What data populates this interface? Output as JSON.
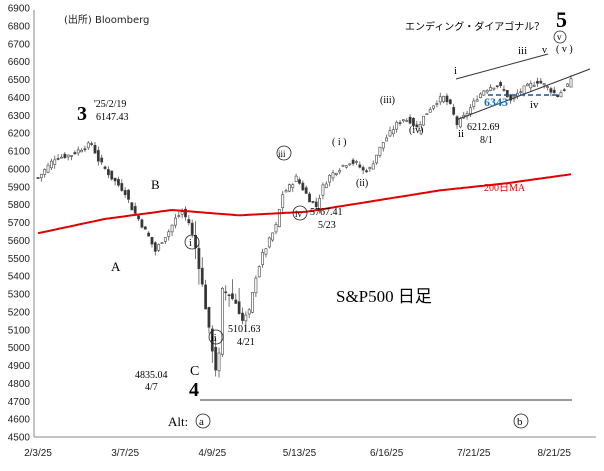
{
  "chart_data": {
    "type": "candlestick",
    "title": "S&P500 日足",
    "source_note": "(出所) Bloomberg",
    "ylim": [
      4500,
      6900
    ],
    "y_ticks": [
      4500,
      4600,
      4700,
      4800,
      4900,
      5000,
      5100,
      5200,
      5300,
      5400,
      5500,
      5600,
      5700,
      5800,
      5900,
      6000,
      6100,
      6200,
      6300,
      6400,
      6500,
      6600,
      6700,
      6800,
      6900
    ],
    "x_ticks": [
      "2/3/25",
      "3/7/25",
      "4/9/25",
      "5/13/25",
      "6/16/25",
      "7/21/25",
      "8/21/25"
    ],
    "grid": false,
    "ma_label": "200日MA",
    "ma_color": "#e00000",
    "ohlc_day_approx_range": {
      "start": "2/3/25",
      "end": "8/29/25"
    },
    "price_path": [
      [
        0,
        5950
      ],
      [
        5,
        6060
      ],
      [
        10,
        6080
      ],
      [
        13,
        6115
      ],
      [
        16,
        6140
      ],
      [
        18,
        6050
      ],
      [
        22,
        5950
      ],
      [
        26,
        5870
      ],
      [
        28,
        5780
      ],
      [
        30,
        5720
      ],
      [
        33,
        5620
      ],
      [
        35,
        5540
      ],
      [
        37,
        5600
      ],
      [
        39,
        5650
      ],
      [
        41,
        5720
      ],
      [
        43,
        5760
      ],
      [
        45,
        5700
      ],
      [
        47,
        5560
      ],
      [
        49,
        5350
      ],
      [
        51,
        5100
      ],
      [
        52,
        4990
      ],
      [
        53,
        4880
      ],
      [
        54,
        4960
      ],
      [
        55,
        5320
      ],
      [
        57,
        5300
      ],
      [
        59,
        5250
      ],
      [
        61,
        5150
      ],
      [
        63,
        5200
      ],
      [
        65,
        5400
      ],
      [
        67,
        5520
      ],
      [
        69,
        5600
      ],
      [
        71,
        5680
      ],
      [
        73,
        5860
      ],
      [
        75,
        5900
      ],
      [
        77,
        5950
      ],
      [
        79,
        5890
      ],
      [
        81,
        5830
      ],
      [
        83,
        5790
      ],
      [
        85,
        5900
      ],
      [
        87,
        5960
      ],
      [
        89,
        5990
      ],
      [
        91,
        6020
      ],
      [
        93,
        6040
      ],
      [
        95,
        6030
      ],
      [
        97,
        5990
      ],
      [
        99,
        6000
      ],
      [
        101,
        6080
      ],
      [
        103,
        6150
      ],
      [
        105,
        6200
      ],
      [
        107,
        6250
      ],
      [
        109,
        6280
      ],
      [
        111,
        6270
      ],
      [
        113,
        6230
      ],
      [
        115,
        6290
      ],
      [
        117,
        6340
      ],
      [
        119,
        6380
      ],
      [
        121,
        6400
      ],
      [
        123,
        6350
      ],
      [
        125,
        6250
      ],
      [
        127,
        6290
      ],
      [
        129,
        6340
      ],
      [
        131,
        6400
      ],
      [
        133,
        6440
      ],
      [
        135,
        6460
      ],
      [
        137,
        6470
      ],
      [
        139,
        6440
      ],
      [
        141,
        6380
      ],
      [
        143,
        6420
      ],
      [
        145,
        6450
      ],
      [
        147,
        6470
      ],
      [
        149,
        6490
      ],
      [
        151,
        6470
      ],
      [
        153,
        6440
      ],
      [
        155,
        6410
      ],
      [
        157,
        6450
      ],
      [
        159,
        6490
      ]
    ],
    "ma_path": [
      [
        0,
        5640
      ],
      [
        20,
        5720
      ],
      [
        40,
        5770
      ],
      [
        60,
        5740
      ],
      [
        80,
        5760
      ],
      [
        100,
        5820
      ],
      [
        120,
        5880
      ],
      [
        140,
        5920
      ],
      [
        159,
        5970
      ]
    ],
    "labels": {
      "w3": "3",
      "w3_date": "'25/2/19",
      "w3_value": "6147.43",
      "wA": "A",
      "wB": "B",
      "wC": "C",
      "w4": "4",
      "w4_value": "4835.04",
      "w4_date": "4/7",
      "wi_low": "i",
      "wii_low": "ii",
      "wii_value": "5101.63",
      "wii_date": "4/21",
      "wiii_a": "iii",
      "wiv_a": "iv",
      "wiv_value": "5767.41",
      "wiv_date": "5/23",
      "w_i_paren": "( i )",
      "w_ii_paren": "(ii)",
      "w_iii_paren": "(iii)",
      "w_iv_paren": "(iv)",
      "wi_top": "i",
      "wii_top": "ii",
      "wii_top_value": "6212.69",
      "wii_top_date": "8/1",
      "wiii_top": "iii",
      "wiv_top": "iv",
      "wv_top": "v",
      "wv_paren": "( v )",
      "w5": "5",
      "w5_circ": "v",
      "ending_diag": "エンディング・ダイアゴナル？",
      "level_6343": "6343",
      "alt_label": "Alt:",
      "alt_a": "a",
      "alt_b": "b"
    }
  }
}
